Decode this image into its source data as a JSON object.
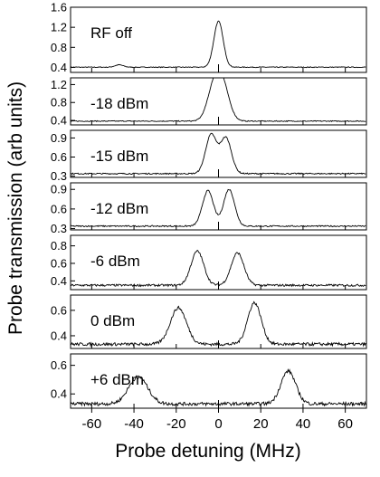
{
  "chart_data": {
    "type": "line",
    "xlabel": "Probe detuning (MHz)",
    "ylabel": "Probe transmission (arb units)",
    "xlim": [
      -70,
      70
    ],
    "x_ticks": [
      -60,
      -40,
      -20,
      0,
      20,
      40,
      60
    ],
    "x_tick_labels": [
      "-60",
      "-40",
      "-20",
      "0",
      "20",
      "40",
      "60"
    ],
    "grid": false,
    "legend": "none",
    "panels": [
      {
        "label": "RF off",
        "ylim": [
          0.3,
          1.6
        ],
        "y_ticks": [
          0.4,
          0.8,
          1.2,
          1.6
        ],
        "y_tick_labels": [
          "0.4",
          "0.8",
          "1.2",
          "1.6"
        ],
        "noise": 0.008,
        "peaks": [
          {
            "center": 0,
            "height": 1.32,
            "width": 2.2
          },
          {
            "center": -47,
            "height": 0.45,
            "width": 2.0
          }
        ]
      },
      {
        "label": "-18 dBm",
        "ylim": [
          0.3,
          1.35
        ],
        "y_ticks": [
          0.4,
          0.8,
          1.2
        ],
        "y_tick_labels": [
          "0.4",
          "0.8",
          "1.2"
        ],
        "noise": 0.01,
        "peaks": [
          {
            "center": -2,
            "height": 1.1,
            "width": 3.2
          },
          {
            "center": 2,
            "height": 1.08,
            "width": 3.2
          }
        ]
      },
      {
        "label": "-15 dBm",
        "ylim": [
          0.28,
          1.02
        ],
        "y_ticks": [
          0.3,
          0.6,
          0.9
        ],
        "y_tick_labels": [
          "0.3",
          "0.6",
          "0.9"
        ],
        "noise": 0.01,
        "peaks": [
          {
            "center": -3.5,
            "height": 0.95,
            "width": 2.6
          },
          {
            "center": 3.5,
            "height": 0.9,
            "width": 2.6
          }
        ]
      },
      {
        "label": "-12 dBm",
        "ylim": [
          0.28,
          1.0
        ],
        "y_ticks": [
          0.3,
          0.6,
          0.9
        ],
        "y_tick_labels": [
          "0.3",
          "0.6",
          "0.9"
        ],
        "noise": 0.01,
        "peaks": [
          {
            "center": -5,
            "height": 0.88,
            "width": 2.6
          },
          {
            "center": 5,
            "height": 0.9,
            "width": 2.6
          }
        ]
      },
      {
        "label": "-6 dBm",
        "ylim": [
          0.3,
          0.92
        ],
        "y_ticks": [
          0.4,
          0.6,
          0.8
        ],
        "y_tick_labels": [
          "0.4",
          "0.6",
          "0.8"
        ],
        "noise": 0.012,
        "peaks": [
          {
            "center": -10,
            "height": 0.74,
            "width": 3.0
          },
          {
            "center": 9,
            "height": 0.72,
            "width": 3.0
          }
        ]
      },
      {
        "label": "0 dBm",
        "ylim": [
          0.3,
          0.72
        ],
        "y_ticks": [
          0.4,
          0.6
        ],
        "y_tick_labels": [
          "0.4",
          "0.6"
        ],
        "noise": 0.012,
        "peaks": [
          {
            "center": -19,
            "height": 0.62,
            "width": 3.8
          },
          {
            "center": 17,
            "height": 0.66,
            "width": 3.2
          }
        ]
      },
      {
        "label": "+6 dBm",
        "ylim": [
          0.3,
          0.68
        ],
        "y_ticks": [
          0.4,
          0.6
        ],
        "y_tick_labels": [
          "0.4",
          "0.6"
        ],
        "noise": 0.012,
        "peaks": [
          {
            "center": -38,
            "height": 0.52,
            "width": 4.5
          },
          {
            "center": 33,
            "height": 0.56,
            "width": 3.5
          }
        ]
      }
    ]
  }
}
